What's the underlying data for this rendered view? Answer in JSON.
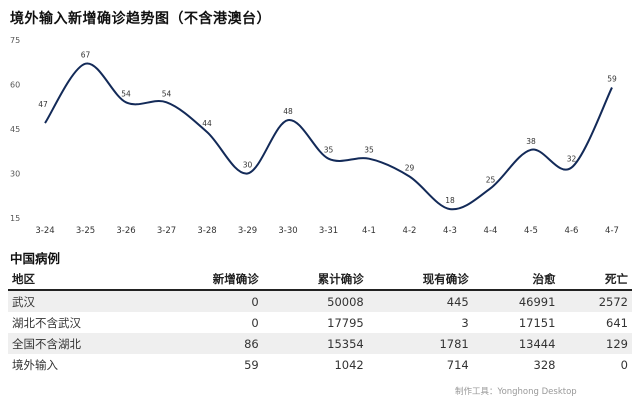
{
  "title": "境外输入新增确诊趋势图（不含港澳台）",
  "chart_data": {
    "type": "line",
    "title": "境外输入新增确诊趋势图（不含港澳台）",
    "x": [
      "3-24",
      "3-25",
      "3-26",
      "3-27",
      "3-28",
      "3-29",
      "3-30",
      "3-31",
      "4-1",
      "4-2",
      "4-3",
      "4-4",
      "4-5",
      "4-6",
      "4-7"
    ],
    "series": [
      {
        "values": [
          47,
          67,
          54,
          54,
          44,
          30,
          48,
          35,
          35,
          29,
          18,
          25,
          38,
          32,
          59
        ]
      }
    ],
    "yticks": [
      15,
      30,
      45,
      60,
      75
    ],
    "ylim": [
      15,
      75
    ],
    "grid": false,
    "line_color": "#132a58"
  },
  "section_title": "中国病例",
  "table": {
    "headers": [
      "地区",
      "新增确诊",
      "累计确诊",
      "现有确诊",
      "治愈",
      "死亡"
    ],
    "rows": [
      [
        "武汉",
        "0",
        "50008",
        "445",
        "46991",
        "2572"
      ],
      [
        "湖北不含武汉",
        "0",
        "17795",
        "3",
        "17151",
        "641"
      ],
      [
        "全国不含湖北",
        "86",
        "15354",
        "1781",
        "13444",
        "129"
      ],
      [
        "境外输入",
        "59",
        "1042",
        "714",
        "328",
        "0"
      ]
    ]
  },
  "credit": "制作工具：Yonghong Desktop"
}
